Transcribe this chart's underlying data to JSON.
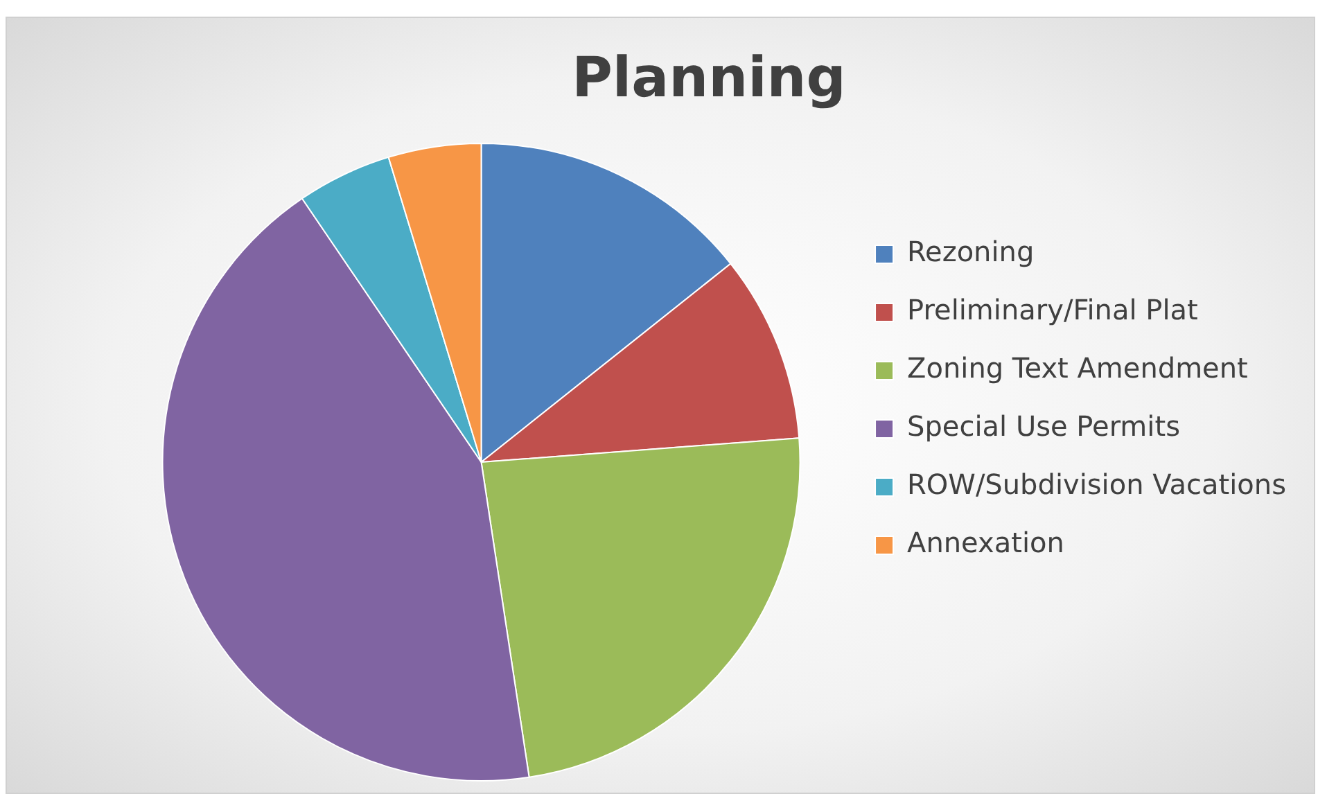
{
  "chart_data": {
    "type": "pie",
    "title": "Planning",
    "categories": [
      "Rezoning",
      "Preliminary/Final Plat",
      "Zoning Text Amendment",
      "Special Use Permits",
      "ROW/Subdivision Vacations",
      "Annexation"
    ],
    "values": [
      14.3,
      9.5,
      23.8,
      42.9,
      4.8,
      4.7
    ],
    "colors": [
      "#4f81bd",
      "#c0504d",
      "#9bbb59",
      "#8064a2",
      "#4bacc6",
      "#f79646"
    ],
    "legend": "right"
  }
}
